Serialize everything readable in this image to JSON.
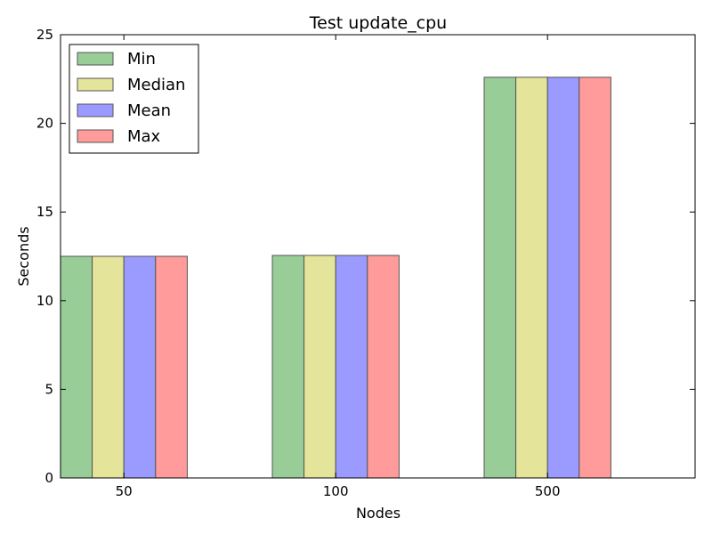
{
  "chart_data": {
    "type": "bar",
    "title": "Test update_cpu",
    "xlabel": "Nodes",
    "ylabel": "Seconds",
    "categories": [
      "50",
      "100",
      "500"
    ],
    "ylim": [
      0,
      25
    ],
    "yticks": [
      "0",
      "5",
      "10",
      "15",
      "20",
      "25"
    ],
    "grid": false,
    "legend_position": "top-left",
    "series": [
      {
        "name": "Min",
        "color": "#98cd98",
        "values": [
          12.5,
          12.55,
          22.6
        ]
      },
      {
        "name": "Median",
        "color": "#e4e59a",
        "values": [
          12.5,
          12.55,
          22.6
        ]
      },
      {
        "name": "Mean",
        "color": "#9b9bff",
        "values": [
          12.5,
          12.55,
          22.6
        ]
      },
      {
        "name": "Max",
        "color": "#ff9b9b",
        "values": [
          12.5,
          12.55,
          22.6
        ]
      }
    ]
  }
}
